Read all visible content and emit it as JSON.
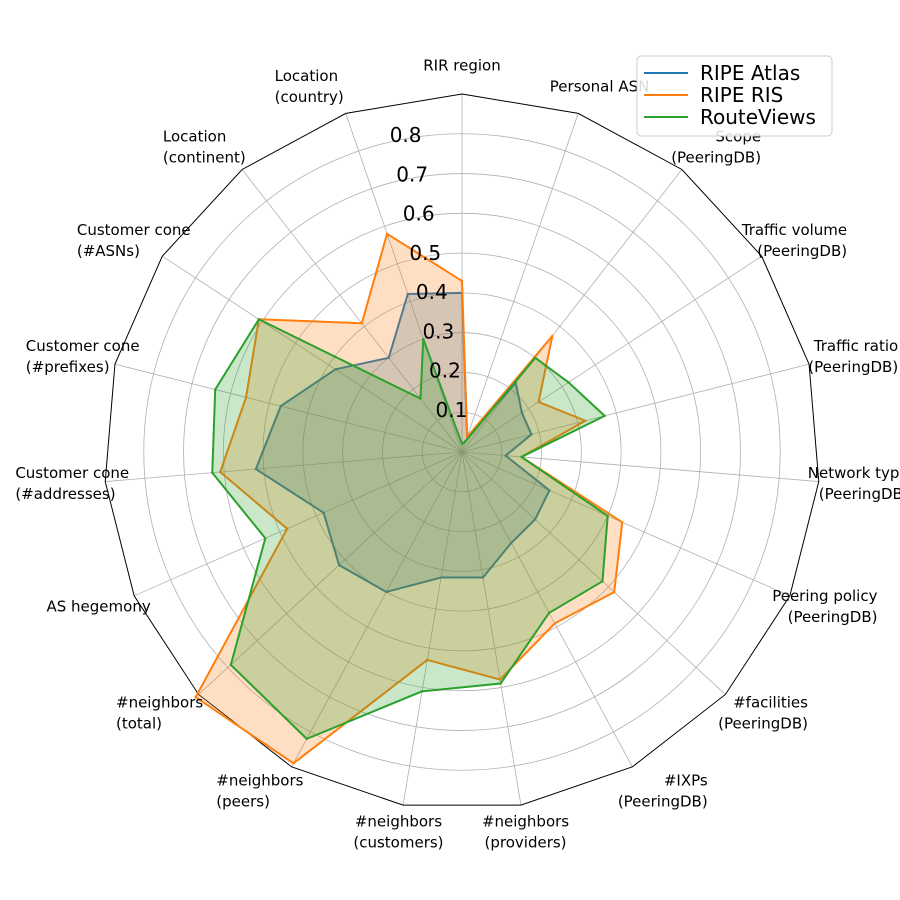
{
  "chart_data": {
    "type": "radar",
    "axes": [
      [
        "RIR region"
      ],
      [
        "Personal ASN"
      ],
      [
        "Scope",
        "(PeeringDB)"
      ],
      [
        "Traffic volume",
        "(PeeringDB)"
      ],
      [
        "Traffic ratio",
        "(PeeringDB)"
      ],
      [
        "Network type",
        "(PeeringDB)"
      ],
      [
        "Peering policy",
        "(PeeringDB)"
      ],
      [
        "#facilities",
        "(PeeringDB)"
      ],
      [
        "#IXPs",
        "(PeeringDB)"
      ],
      [
        "#neighbors",
        "(providers)"
      ],
      [
        "#neighbors",
        "(customers)"
      ],
      [
        "#neighbors",
        "(peers)"
      ],
      [
        "#neighbors",
        "(total)"
      ],
      [
        "AS hegemony"
      ],
      [
        "Customer cone",
        "(#addresses)"
      ],
      [
        "Customer cone",
        "(#prefixes)"
      ],
      [
        "Customer cone",
        "(#ASNs)"
      ],
      [
        "Location",
        "(continent)"
      ],
      [
        "Location",
        "(country)"
      ]
    ],
    "rticks": [
      "0.1",
      "0.2",
      "0.3",
      "0.4",
      "0.5",
      "0.6",
      "0.7",
      "0.8"
    ],
    "rtick_values": [
      0.1,
      0.2,
      0.3,
      0.4,
      0.5,
      0.6,
      0.7,
      0.8
    ],
    "rmax": 0.9,
    "grid": true,
    "legend_position": "top-right",
    "series": [
      {
        "name": "RIPE Atlas",
        "color": "#1f77b4",
        "values": [
          0.4,
          0.04,
          0.22,
          0.18,
          0.18,
          0.11,
          0.24,
          0.25,
          0.26,
          0.32,
          0.32,
          0.4,
          0.42,
          0.38,
          0.52,
          0.47,
          0.38,
          0.3,
          0.42
        ]
      },
      {
        "name": "RIPE RIS",
        "color": "#ff7f0e",
        "values": [
          0.43,
          0.04,
          0.37,
          0.23,
          0.32,
          0.15,
          0.44,
          0.52,
          0.49,
          0.58,
          0.53,
          0.89,
          0.91,
          0.48,
          0.61,
          0.56,
          0.61,
          0.41,
          0.58
        ]
      },
      {
        "name": "RouteViews",
        "color": "#2ca02c",
        "values": [
          0.02,
          0.03,
          0.3,
          0.32,
          0.37,
          0.15,
          0.4,
          0.48,
          0.46,
          0.59,
          0.61,
          0.82,
          0.79,
          0.54,
          0.63,
          0.64,
          0.61,
          0.17,
          0.3
        ]
      }
    ]
  }
}
